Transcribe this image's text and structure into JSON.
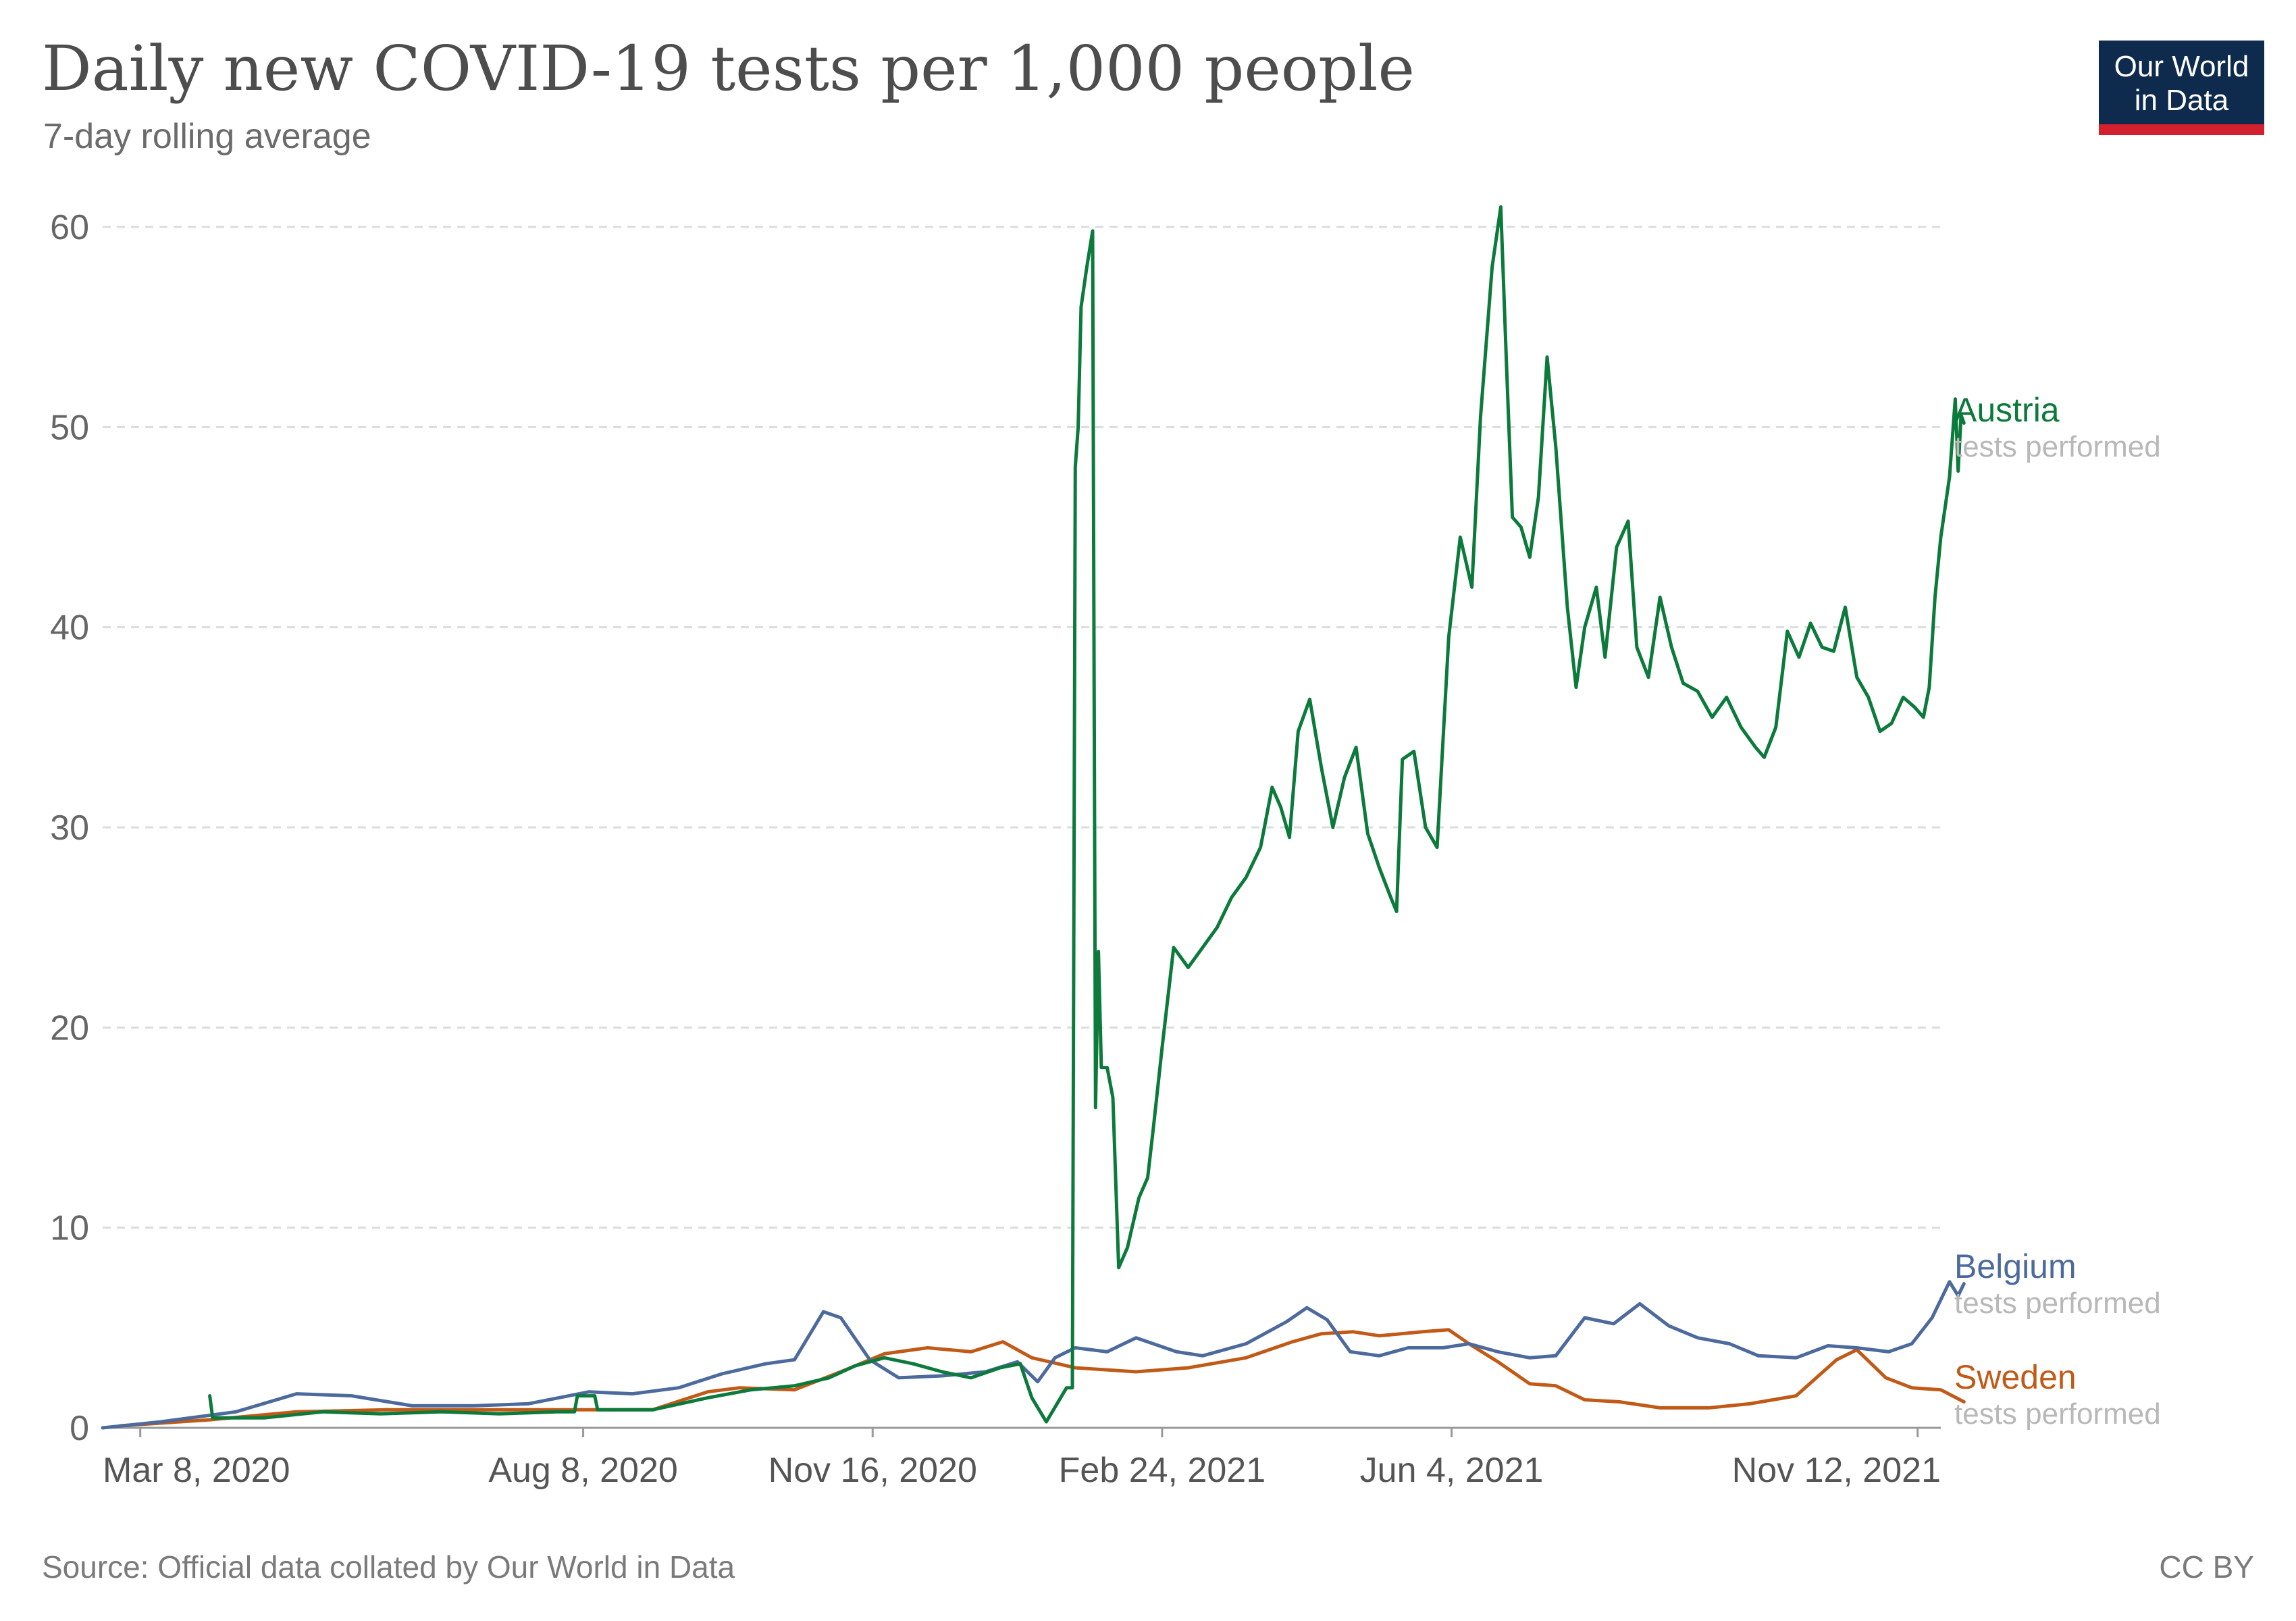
{
  "header": {
    "title": "Daily new COVID-19 tests per 1,000 people",
    "subtitle": "7-day rolling average"
  },
  "logo": {
    "line1": "Our World",
    "line2": "in Data"
  },
  "footer": {
    "source": "Source: Official data collated by Our World in Data",
    "license": "CC BY"
  },
  "chart_data": {
    "type": "line",
    "title": "Daily new COVID-19 tests per 1,000 people",
    "subtitle": "7-day rolling average",
    "x_range": [
      "2020-02-24",
      "2021-11-20"
    ],
    "ylim": [
      0,
      60
    ],
    "y_ticks": [
      0,
      10,
      20,
      30,
      40,
      50,
      60
    ],
    "x_ticks": [
      {
        "date": "2020-03-08",
        "label": "Mar 8, 2020"
      },
      {
        "date": "2020-08-08",
        "label": "Aug 8, 2020"
      },
      {
        "date": "2020-11-16",
        "label": "Nov 16, 2020"
      },
      {
        "date": "2021-02-24",
        "label": "Feb 24, 2021"
      },
      {
        "date": "2021-06-04",
        "label": "Jun 4, 2021"
      },
      {
        "date": "2021-11-12",
        "label": "Nov 12, 2021"
      }
    ],
    "grid": true,
    "legend": "end-of-line labels",
    "series": [
      {
        "name": "Austria",
        "sublabel": "tests performed",
        "color": "#0b7a3b",
        "points": [
          [
            "2020-04-01",
            1.6
          ],
          [
            "2020-04-02",
            0.5
          ],
          [
            "2020-04-20",
            0.5
          ],
          [
            "2020-05-10",
            0.8
          ],
          [
            "2020-05-30",
            0.7
          ],
          [
            "2020-06-20",
            0.8
          ],
          [
            "2020-07-10",
            0.7
          ],
          [
            "2020-07-30",
            0.8
          ],
          [
            "2020-08-05",
            0.8
          ],
          [
            "2020-08-06",
            1.6
          ],
          [
            "2020-08-12",
            1.6
          ],
          [
            "2020-08-13",
            0.9
          ],
          [
            "2020-09-01",
            0.9
          ],
          [
            "2020-09-20",
            1.5
          ],
          [
            "2020-10-05",
            1.9
          ],
          [
            "2020-10-20",
            2.1
          ],
          [
            "2020-11-01",
            2.5
          ],
          [
            "2020-11-10",
            3.1
          ],
          [
            "2020-11-20",
            3.5
          ],
          [
            "2020-11-30",
            3.2
          ],
          [
            "2020-12-10",
            2.8
          ],
          [
            "2020-12-20",
            2.5
          ],
          [
            "2020-12-30",
            3.0
          ],
          [
            "2021-01-06",
            3.2
          ],
          [
            "2021-01-10",
            1.5
          ],
          [
            "2021-01-15",
            0.3
          ],
          [
            "2021-01-22",
            2.0
          ],
          [
            "2021-01-24",
            2.0
          ],
          [
            "2021-01-25",
            48.0
          ],
          [
            "2021-01-26",
            50.0
          ],
          [
            "2021-01-27",
            56.0
          ],
          [
            "2021-01-29",
            58.0
          ],
          [
            "2021-01-31",
            59.8
          ],
          [
            "2021-02-01",
            16.0
          ],
          [
            "2021-02-02",
            23.8
          ],
          [
            "2021-02-03",
            18.0
          ],
          [
            "2021-02-05",
            18.0
          ],
          [
            "2021-02-07",
            16.5
          ],
          [
            "2021-02-09",
            8.0
          ],
          [
            "2021-02-12",
            9.0
          ],
          [
            "2021-02-16",
            11.5
          ],
          [
            "2021-02-19",
            12.5
          ],
          [
            "2021-02-21",
            15.0
          ],
          [
            "2021-02-24",
            19.0
          ],
          [
            "2021-02-28",
            24.0
          ],
          [
            "2021-03-05",
            23.0
          ],
          [
            "2021-03-10",
            24.0
          ],
          [
            "2021-03-15",
            25.0
          ],
          [
            "2021-03-20",
            26.5
          ],
          [
            "2021-03-25",
            27.5
          ],
          [
            "2021-03-30",
            29.0
          ],
          [
            "2021-04-03",
            32.0
          ],
          [
            "2021-04-06",
            31.0
          ],
          [
            "2021-04-09",
            29.5
          ],
          [
            "2021-04-12",
            34.8
          ],
          [
            "2021-04-16",
            36.4
          ],
          [
            "2021-04-20",
            33.0
          ],
          [
            "2021-04-24",
            30.0
          ],
          [
            "2021-04-28",
            32.5
          ],
          [
            "2021-05-02",
            34.0
          ],
          [
            "2021-05-06",
            29.7
          ],
          [
            "2021-05-10",
            28.0
          ],
          [
            "2021-05-14",
            26.5
          ],
          [
            "2021-05-16",
            25.8
          ],
          [
            "2021-05-18",
            33.4
          ],
          [
            "2021-05-22",
            33.8
          ],
          [
            "2021-05-26",
            30.0
          ],
          [
            "2021-05-30",
            29.0
          ],
          [
            "2021-06-03",
            39.5
          ],
          [
            "2021-06-07",
            44.5
          ],
          [
            "2021-06-11",
            42.0
          ],
          [
            "2021-06-14",
            50.5
          ],
          [
            "2021-06-18",
            58.0
          ],
          [
            "2021-06-21",
            61.0
          ],
          [
            "2021-06-23",
            53.0
          ],
          [
            "2021-06-25",
            45.5
          ],
          [
            "2021-06-28",
            45.0
          ],
          [
            "2021-07-01",
            43.5
          ],
          [
            "2021-07-04",
            46.5
          ],
          [
            "2021-07-07",
            53.5
          ],
          [
            "2021-07-10",
            49.0
          ],
          [
            "2021-07-14",
            41.0
          ],
          [
            "2021-07-17",
            37.0
          ],
          [
            "2021-07-20",
            40.0
          ],
          [
            "2021-07-24",
            42.0
          ],
          [
            "2021-07-27",
            38.5
          ],
          [
            "2021-07-31",
            44.0
          ],
          [
            "2021-08-04",
            45.3
          ],
          [
            "2021-08-07",
            39.0
          ],
          [
            "2021-08-11",
            37.5
          ],
          [
            "2021-08-15",
            41.5
          ],
          [
            "2021-08-19",
            39.0
          ],
          [
            "2021-08-23",
            37.2
          ],
          [
            "2021-08-28",
            36.8
          ],
          [
            "2021-09-02",
            35.5
          ],
          [
            "2021-09-07",
            36.5
          ],
          [
            "2021-09-12",
            35.0
          ],
          [
            "2021-09-17",
            34.0
          ],
          [
            "2021-09-20",
            33.5
          ],
          [
            "2021-09-24",
            35.0
          ],
          [
            "2021-09-28",
            39.8
          ],
          [
            "2021-10-02",
            38.5
          ],
          [
            "2021-10-06",
            40.2
          ],
          [
            "2021-10-10",
            39.0
          ],
          [
            "2021-10-14",
            38.8
          ],
          [
            "2021-10-18",
            41.0
          ],
          [
            "2021-10-22",
            37.5
          ],
          [
            "2021-10-26",
            36.5
          ],
          [
            "2021-10-30",
            34.8
          ],
          [
            "2021-11-03",
            35.2
          ],
          [
            "2021-11-07",
            36.5
          ],
          [
            "2021-11-11",
            36.0
          ],
          [
            "2021-11-14",
            35.5
          ],
          [
            "2021-11-16",
            37.0
          ],
          [
            "2021-11-18",
            41.5
          ],
          [
            "2021-11-20",
            44.5
          ],
          [
            "2021-11-23",
            47.5
          ],
          [
            "2021-11-25",
            51.4
          ],
          [
            "2021-11-26",
            47.8
          ],
          [
            "2021-11-27",
            50.6
          ],
          [
            "2021-11-28",
            50.2
          ]
        ]
      },
      {
        "name": "Belgium",
        "sublabel": "tests performed",
        "color": "#4c6a9c",
        "points": [
          [
            "2020-02-24",
            0.0
          ],
          [
            "2020-03-15",
            0.3
          ],
          [
            "2020-04-10",
            0.8
          ],
          [
            "2020-05-01",
            1.7
          ],
          [
            "2020-05-20",
            1.6
          ],
          [
            "2020-06-10",
            1.1
          ],
          [
            "2020-07-01",
            1.1
          ],
          [
            "2020-07-20",
            1.2
          ],
          [
            "2020-08-10",
            1.8
          ],
          [
            "2020-08-25",
            1.7
          ],
          [
            "2020-09-10",
            2.0
          ],
          [
            "2020-09-25",
            2.7
          ],
          [
            "2020-10-10",
            3.2
          ],
          [
            "2020-10-20",
            3.4
          ],
          [
            "2020-10-30",
            5.8
          ],
          [
            "2020-11-05",
            5.5
          ],
          [
            "2020-11-15",
            3.4
          ],
          [
            "2020-11-25",
            2.5
          ],
          [
            "2020-12-10",
            2.6
          ],
          [
            "2020-12-25",
            2.8
          ],
          [
            "2021-01-05",
            3.3
          ],
          [
            "2021-01-12",
            2.3
          ],
          [
            "2021-01-18",
            3.5
          ],
          [
            "2021-01-25",
            4.0
          ],
          [
            "2021-02-05",
            3.8
          ],
          [
            "2021-02-15",
            4.5
          ],
          [
            "2021-03-01",
            3.8
          ],
          [
            "2021-03-10",
            3.6
          ],
          [
            "2021-03-25",
            4.2
          ],
          [
            "2021-04-08",
            5.3
          ],
          [
            "2021-04-15",
            6.0
          ],
          [
            "2021-04-22",
            5.4
          ],
          [
            "2021-04-30",
            3.8
          ],
          [
            "2021-05-10",
            3.6
          ],
          [
            "2021-05-20",
            4.0
          ],
          [
            "2021-06-01",
            4.0
          ],
          [
            "2021-06-10",
            4.2
          ],
          [
            "2021-06-20",
            3.8
          ],
          [
            "2021-07-01",
            3.5
          ],
          [
            "2021-07-10",
            3.6
          ],
          [
            "2021-07-20",
            5.5
          ],
          [
            "2021-07-30",
            5.2
          ],
          [
            "2021-08-08",
            6.2
          ],
          [
            "2021-08-18",
            5.1
          ],
          [
            "2021-08-28",
            4.5
          ],
          [
            "2021-09-08",
            4.2
          ],
          [
            "2021-09-18",
            3.6
          ],
          [
            "2021-10-01",
            3.5
          ],
          [
            "2021-10-12",
            4.1
          ],
          [
            "2021-10-22",
            4.0
          ],
          [
            "2021-11-02",
            3.8
          ],
          [
            "2021-11-10",
            4.2
          ],
          [
            "2021-11-17",
            5.5
          ],
          [
            "2021-11-23",
            7.3
          ],
          [
            "2021-11-26",
            6.6
          ],
          [
            "2021-11-28",
            7.2
          ]
        ]
      },
      {
        "name": "Sweden",
        "sublabel": "tests performed",
        "color": "#c15a17",
        "points": [
          [
            "2020-03-01",
            0.1
          ],
          [
            "2020-04-01",
            0.4
          ],
          [
            "2020-05-01",
            0.8
          ],
          [
            "2020-06-01",
            0.9
          ],
          [
            "2020-07-01",
            0.9
          ],
          [
            "2020-08-01",
            0.9
          ],
          [
            "2020-09-01",
            0.9
          ],
          [
            "2020-09-20",
            1.8
          ],
          [
            "2020-10-01",
            2.0
          ],
          [
            "2020-10-20",
            1.9
          ],
          [
            "2020-11-05",
            2.8
          ],
          [
            "2020-11-20",
            3.7
          ],
          [
            "2020-12-05",
            4.0
          ],
          [
            "2020-12-20",
            3.8
          ],
          [
            "2020-12-31",
            4.3
          ],
          [
            "2021-01-10",
            3.5
          ],
          [
            "2021-01-25",
            3.0
          ],
          [
            "2021-02-15",
            2.8
          ],
          [
            "2021-03-05",
            3.0
          ],
          [
            "2021-03-25",
            3.5
          ],
          [
            "2021-04-10",
            4.3
          ],
          [
            "2021-04-20",
            4.7
          ],
          [
            "2021-05-01",
            4.8
          ],
          [
            "2021-05-10",
            4.6
          ],
          [
            "2021-05-25",
            4.8
          ],
          [
            "2021-06-03",
            4.9
          ],
          [
            "2021-06-10",
            4.2
          ],
          [
            "2021-06-20",
            3.3
          ],
          [
            "2021-07-01",
            2.2
          ],
          [
            "2021-07-10",
            2.1
          ],
          [
            "2021-07-20",
            1.4
          ],
          [
            "2021-08-01",
            1.3
          ],
          [
            "2021-08-15",
            1.0
          ],
          [
            "2021-09-01",
            1.0
          ],
          [
            "2021-09-15",
            1.2
          ],
          [
            "2021-10-01",
            1.6
          ],
          [
            "2021-10-15",
            3.4
          ],
          [
            "2021-10-22",
            3.9
          ],
          [
            "2021-11-01",
            2.5
          ],
          [
            "2021-11-10",
            2.0
          ],
          [
            "2021-11-20",
            1.9
          ],
          [
            "2021-11-28",
            1.3
          ]
        ]
      }
    ]
  }
}
